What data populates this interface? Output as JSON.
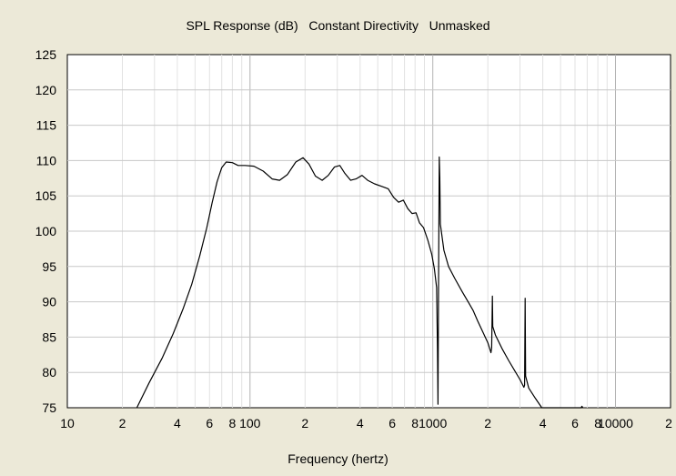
{
  "chart_data": {
    "type": "line",
    "title": "SPL Response (dB)   Constant Directivity   Unmasked",
    "xlabel": "Frequency (hertz)",
    "ylabel": "",
    "xscale": "log",
    "xlim": [
      10,
      20000
    ],
    "ylim": [
      75,
      125
    ],
    "grid": true,
    "y_ticks": [
      125,
      120,
      115,
      110,
      105,
      100,
      95,
      90,
      85,
      80,
      75
    ],
    "x_ticks": [
      {
        "value": 10,
        "label": "10"
      },
      {
        "value": 20,
        "label": "2"
      },
      {
        "value": 40,
        "label": "4"
      },
      {
        "value": 60,
        "label": "6"
      },
      {
        "value": 80,
        "label": "8"
      },
      {
        "value": 100,
        "label": "100"
      },
      {
        "value": 200,
        "label": "2"
      },
      {
        "value": 400,
        "label": "4"
      },
      {
        "value": 600,
        "label": "6"
      },
      {
        "value": 800,
        "label": "8"
      },
      {
        "value": 1000,
        "label": "1000"
      },
      {
        "value": 2000,
        "label": "2"
      },
      {
        "value": 4000,
        "label": "4"
      },
      {
        "value": 6000,
        "label": "6"
      },
      {
        "value": 8000,
        "label": "8"
      },
      {
        "value": 10000,
        "label": "10000"
      },
      {
        "value": 20000,
        "label": "2"
      }
    ],
    "series": [
      {
        "color": "#000000",
        "points": [
          [
            24,
            75
          ],
          [
            28,
            78.5
          ],
          [
            33,
            82
          ],
          [
            38,
            85.5
          ],
          [
            43,
            89
          ],
          [
            48,
            92.5
          ],
          [
            53,
            96.5
          ],
          [
            58,
            100.5
          ],
          [
            62,
            104
          ],
          [
            66,
            107
          ],
          [
            70,
            109
          ],
          [
            74,
            109.8
          ],
          [
            80,
            109.7
          ],
          [
            86,
            109.3
          ],
          [
            94,
            109.3
          ],
          [
            105,
            109.2
          ],
          [
            118,
            108.5
          ],
          [
            132,
            107.4
          ],
          [
            145,
            107.2
          ],
          [
            160,
            108
          ],
          [
            178,
            109.8
          ],
          [
            195,
            110.4
          ],
          [
            210,
            109.5
          ],
          [
            228,
            107.8
          ],
          [
            248,
            107.2
          ],
          [
            268,
            107.9
          ],
          [
            290,
            109.1
          ],
          [
            310,
            109.3
          ],
          [
            330,
            108.2
          ],
          [
            355,
            107.2
          ],
          [
            380,
            107.4
          ],
          [
            410,
            107.9
          ],
          [
            440,
            107.2
          ],
          [
            480,
            106.7
          ],
          [
            530,
            106.3
          ],
          [
            570,
            106
          ],
          [
            610,
            104.8
          ],
          [
            650,
            104.1
          ],
          [
            690,
            104.4
          ],
          [
            730,
            103.2
          ],
          [
            770,
            102.5
          ],
          [
            810,
            102.6
          ],
          [
            845,
            101.2
          ],
          [
            890,
            100.5
          ],
          [
            940,
            98.7
          ],
          [
            985,
            96.8
          ],
          [
            1020,
            94.7
          ],
          [
            1050,
            92
          ],
          [
            1060,
            83.5
          ],
          [
            1068,
            75.5
          ],
          [
            1075,
            92
          ],
          [
            1085,
            110.5
          ],
          [
            1092,
            107.5
          ],
          [
            1100,
            101
          ],
          [
            1150,
            97.3
          ],
          [
            1220,
            95
          ],
          [
            1320,
            93.3
          ],
          [
            1450,
            91.4
          ],
          [
            1560,
            90
          ],
          [
            1660,
            88.8
          ],
          [
            1760,
            87.3
          ],
          [
            1880,
            85.7
          ],
          [
            2000,
            84.2
          ],
          [
            2080,
            82.8
          ],
          [
            2100,
            83.5
          ],
          [
            2120,
            90.8
          ],
          [
            2130,
            86.5
          ],
          [
            2200,
            85.3
          ],
          [
            2400,
            83.3
          ],
          [
            2600,
            81.7
          ],
          [
            2800,
            80.3
          ],
          [
            3000,
            79
          ],
          [
            3150,
            77.9
          ],
          [
            3180,
            78.2
          ],
          [
            3200,
            90.5
          ],
          [
            3220,
            79.5
          ],
          [
            3350,
            77.8
          ],
          [
            3650,
            76.3
          ],
          [
            3950,
            75
          ],
          [
            6480,
            75
          ],
          [
            6550,
            75.2
          ],
          [
            6620,
            75
          ]
        ]
      }
    ]
  }
}
